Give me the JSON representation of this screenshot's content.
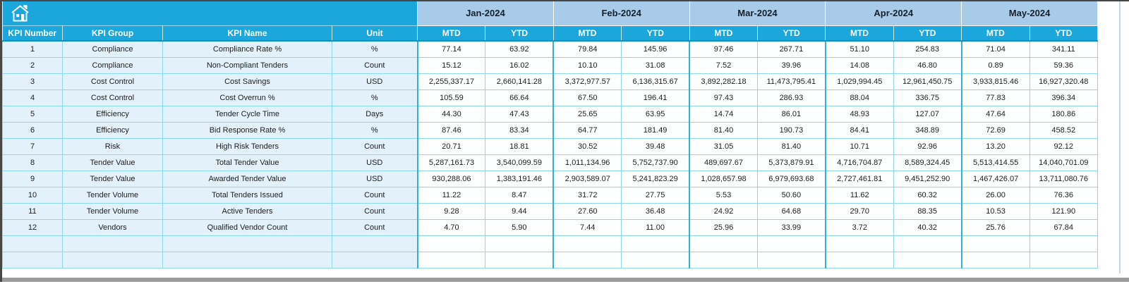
{
  "table": {
    "left_headers": [
      "KPI Number",
      "KPI Group",
      "KPI Name",
      "Unit"
    ],
    "months": [
      "Jan-2024",
      "Feb-2024",
      "Mar-2024",
      "Apr-2024",
      "May-2024"
    ],
    "sub_headers": [
      "MTD",
      "YTD"
    ],
    "rows": [
      {
        "number": "1",
        "group": "Compliance",
        "name": "Compliance Rate %",
        "unit": "%",
        "values": [
          "77.14",
          "63.92",
          "79.84",
          "145.96",
          "97.46",
          "267.71",
          "51.10",
          "254.83",
          "71.04",
          "341.11"
        ]
      },
      {
        "number": "2",
        "group": "Compliance",
        "name": "Non-Compliant Tenders",
        "unit": "Count",
        "values": [
          "15.12",
          "16.02",
          "10.10",
          "31.08",
          "7.52",
          "39.96",
          "14.08",
          "46.80",
          "0.89",
          "59.36"
        ]
      },
      {
        "number": "3",
        "group": "Cost Control",
        "name": "Cost Savings",
        "unit": "USD",
        "values": [
          "2,255,337.17",
          "2,660,141.28",
          "3,372,977.57",
          "6,136,315.67",
          "3,892,282.18",
          "11,473,795.41",
          "1,029,994.45",
          "12,961,450.75",
          "3,933,815.46",
          "16,927,320.48"
        ]
      },
      {
        "number": "4",
        "group": "Cost Control",
        "name": "Cost Overrun %",
        "unit": "%",
        "values": [
          "105.59",
          "66.64",
          "67.50",
          "196.41",
          "97.43",
          "286.93",
          "88.04",
          "336.75",
          "77.83",
          "396.34"
        ]
      },
      {
        "number": "5",
        "group": "Efficiency",
        "name": "Tender Cycle Time",
        "unit": "Days",
        "values": [
          "44.30",
          "47.43",
          "25.65",
          "63.95",
          "14.74",
          "86.01",
          "48.93",
          "127.07",
          "47.64",
          "180.86"
        ]
      },
      {
        "number": "6",
        "group": "Efficiency",
        "name": "Bid Response Rate %",
        "unit": "%",
        "values": [
          "87.46",
          "83.34",
          "64.77",
          "181.49",
          "81.40",
          "190.73",
          "84.41",
          "348.89",
          "72.69",
          "458.52"
        ]
      },
      {
        "number": "7",
        "group": "Risk",
        "name": "High Risk Tenders",
        "unit": "Count",
        "values": [
          "20.71",
          "18.81",
          "30.52",
          "39.48",
          "31.05",
          "81.40",
          "10.71",
          "92.96",
          "13.20",
          "92.12"
        ]
      },
      {
        "number": "8",
        "group": "Tender Value",
        "name": "Total Tender Value",
        "unit": "USD",
        "values": [
          "5,287,161.73",
          "3,540,099.59",
          "1,011,134.96",
          "5,752,737.90",
          "489,697.67",
          "5,373,879.91",
          "4,716,704.87",
          "8,589,324.45",
          "5,513,414.55",
          "14,040,701.09"
        ]
      },
      {
        "number": "9",
        "group": "Tender Value",
        "name": "Awarded Tender Value",
        "unit": "USD",
        "values": [
          "930,288.06",
          "1,383,191.46",
          "2,903,589.07",
          "5,241,823.29",
          "1,028,657.98",
          "6,979,693.68",
          "2,727,461.81",
          "9,451,252.90",
          "1,467,426.07",
          "13,711,080.76"
        ]
      },
      {
        "number": "10",
        "group": "Tender Volume",
        "name": "Total Tenders Issued",
        "unit": "Count",
        "values": [
          "11.22",
          "8.47",
          "31.72",
          "27.75",
          "5.53",
          "50.60",
          "11.62",
          "60.32",
          "26.00",
          "76.36"
        ]
      },
      {
        "number": "11",
        "group": "Tender Volume",
        "name": "Active Tenders",
        "unit": "Count",
        "values": [
          "9.28",
          "9.44",
          "27.60",
          "36.48",
          "24.92",
          "64.68",
          "29.70",
          "88.35",
          "10.53",
          "121.90"
        ]
      },
      {
        "number": "12",
        "group": "Vendors",
        "name": "Qualified Vendor Count",
        "unit": "Count",
        "values": [
          "4.70",
          "5.90",
          "7.44",
          "11.00",
          "25.96",
          "33.99",
          "3.72",
          "40.32",
          "25.76",
          "67.84"
        ]
      }
    ],
    "empty_row_count": 2
  },
  "icons": {
    "home": "home-icon"
  },
  "colors": {
    "accent": "#1BA7DB",
    "month_band": "#A7CBE9",
    "row_left_bg": "#E3F2FA",
    "row_data_bg": "#FEFFFF",
    "grid_line": "#8ED7ED",
    "frame_dark": "#474747",
    "bottom_bar_gray": "#9B9B9B"
  }
}
